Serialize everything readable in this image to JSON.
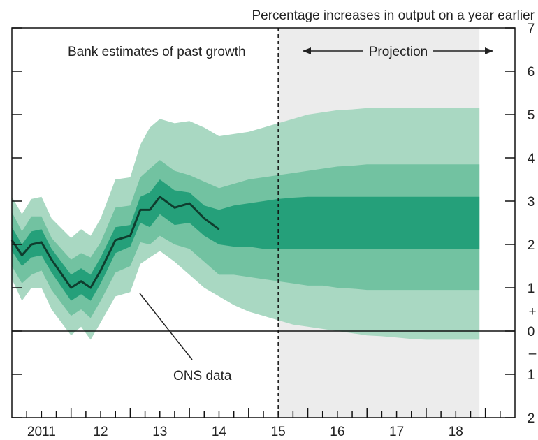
{
  "chart_data": {
    "type": "area",
    "subtitle": "Percentage increases in output on a year earlier",
    "annotations": {
      "past_label": "Bank estimates of past growth",
      "projection_label": "Projection",
      "ons_label": "ONS data"
    },
    "x_ticks": [
      "2011",
      "12",
      "13",
      "14",
      "15",
      "16",
      "17",
      "18"
    ],
    "y_ticks": [
      {
        "value": 7,
        "label": "7"
      },
      {
        "value": 6,
        "label": "6"
      },
      {
        "value": 5,
        "label": "5"
      },
      {
        "value": 4,
        "label": "4"
      },
      {
        "value": 3,
        "label": "3"
      },
      {
        "value": 2,
        "label": "2"
      },
      {
        "value": 1,
        "label": "1"
      },
      {
        "value": 0,
        "label": "0"
      },
      {
        "value": -1,
        "label": "1"
      },
      {
        "value": -2,
        "label": "2"
      }
    ],
    "sign_labels": {
      "plus": "+",
      "minus": "–"
    },
    "ylim": [
      -2,
      7
    ],
    "xlim": [
      2010.5,
      2019.0
    ],
    "projection_start": 2015.0,
    "x": [
      2010.5,
      2010.67,
      2010.83,
      2011.0,
      2011.17,
      2011.5,
      2011.67,
      2011.83,
      2012.0,
      2012.25,
      2012.5,
      2012.67,
      2012.83,
      2013.0,
      2013.25,
      2013.5,
      2013.75,
      2014.0,
      2014.25,
      2014.5,
      2014.75,
      2015.0,
      2015.25,
      2015.5,
      2015.75,
      2016.0,
      2016.25,
      2016.5,
      2016.75,
      2017.0,
      2017.25,
      2017.5,
      2017.75,
      2018.0,
      2018.25,
      2018.4
    ],
    "series": [
      {
        "name": "ONS data",
        "color": "#0f3d2e",
        "values": [
          2.1,
          1.75,
          2.0,
          2.05,
          1.65,
          1.0,
          1.15,
          1.0,
          1.4,
          2.1,
          2.2,
          2.8,
          2.8,
          3.1,
          2.85,
          2.95,
          2.6,
          2.35,
          null,
          null,
          null,
          null,
          null,
          null,
          null,
          null,
          null,
          null,
          null,
          null,
          null,
          null,
          null,
          null,
          null,
          null
        ]
      }
    ],
    "fan_bands": [
      {
        "color": "#a9d8c2",
        "upper": [
          3.1,
          2.7,
          3.05,
          3.1,
          2.6,
          2.15,
          2.35,
          2.2,
          2.6,
          3.5,
          3.55,
          4.3,
          4.7,
          4.9,
          4.8,
          4.85,
          4.7,
          4.5,
          4.55,
          4.6,
          4.7,
          4.8,
          4.9,
          5.0,
          5.05,
          5.1,
          5.12,
          5.15,
          5.15,
          5.15,
          5.15,
          5.15,
          5.15,
          5.15,
          5.15,
          5.15
        ],
        "lower": [
          1.2,
          0.7,
          1.0,
          1.0,
          0.5,
          -0.1,
          0.1,
          -0.2,
          0.2,
          0.8,
          0.9,
          1.55,
          1.7,
          1.85,
          1.6,
          1.3,
          1.0,
          0.8,
          0.6,
          0.45,
          0.35,
          0.25,
          0.15,
          0.1,
          0.05,
          0.0,
          -0.05,
          -0.1,
          -0.12,
          -0.15,
          -0.18,
          -0.2,
          -0.2,
          -0.2,
          -0.2,
          -0.2
        ]
      },
      {
        "color": "#72c2a1",
        "upper": [
          2.75,
          2.3,
          2.65,
          2.65,
          2.15,
          1.65,
          1.8,
          1.7,
          2.05,
          2.85,
          2.9,
          3.55,
          3.75,
          3.95,
          3.7,
          3.6,
          3.45,
          3.3,
          3.4,
          3.5,
          3.55,
          3.6,
          3.65,
          3.7,
          3.75,
          3.8,
          3.82,
          3.85,
          3.85,
          3.85,
          3.85,
          3.85,
          3.85,
          3.85,
          3.85,
          3.85
        ],
        "lower": [
          1.5,
          1.1,
          1.3,
          1.4,
          0.95,
          0.35,
          0.5,
          0.3,
          0.7,
          1.35,
          1.5,
          2.05,
          2.0,
          2.2,
          2.0,
          1.9,
          1.6,
          1.3,
          1.3,
          1.25,
          1.2,
          1.15,
          1.1,
          1.05,
          1.05,
          1.0,
          0.98,
          0.95,
          0.95,
          0.95,
          0.95,
          0.95,
          0.95,
          0.95,
          0.95,
          0.95
        ]
      },
      {
        "color": "#25a07a",
        "upper": [
          2.4,
          2.0,
          2.3,
          2.35,
          1.9,
          1.3,
          1.45,
          1.3,
          1.7,
          2.4,
          2.45,
          3.1,
          3.2,
          3.5,
          3.25,
          3.2,
          2.9,
          2.8,
          2.9,
          2.95,
          3.0,
          3.05,
          3.08,
          3.1,
          3.1,
          3.1,
          3.1,
          3.1,
          3.1,
          3.1,
          3.1,
          3.1,
          3.1,
          3.1,
          3.1,
          3.1
        ],
        "lower": [
          1.85,
          1.5,
          1.7,
          1.75,
          1.35,
          0.7,
          0.85,
          0.7,
          1.1,
          1.8,
          1.95,
          2.5,
          2.4,
          2.7,
          2.45,
          2.5,
          2.2,
          2.0,
          1.95,
          1.95,
          1.9,
          1.9,
          1.9,
          1.9,
          1.9,
          1.9,
          1.9,
          1.9,
          1.9,
          1.9,
          1.9,
          1.9,
          1.9,
          1.9,
          1.9,
          1.9
        ]
      }
    ],
    "colors": {
      "projection_background": "#ececec",
      "axis": "#111111",
      "zero_line": "#111111"
    },
    "grid": false
  }
}
